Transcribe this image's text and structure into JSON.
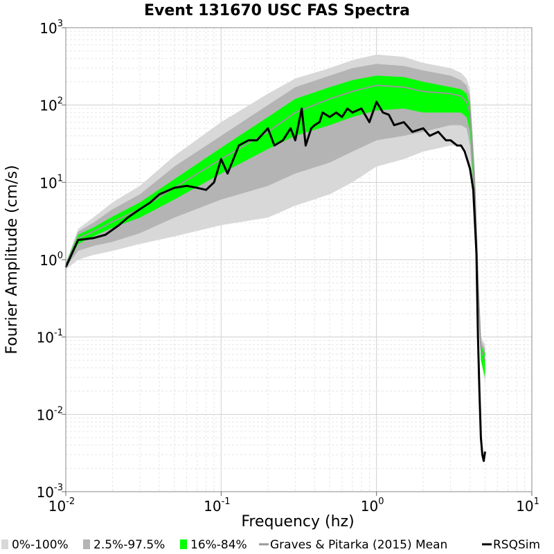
{
  "chart_data": {
    "type": "line",
    "title": "Event 131670 USC FAS Spectra",
    "xlabel": "Frequency (hz)",
    "ylabel": "Fourier Amplitude (cm/s)",
    "x_scale": "log",
    "y_scale": "log",
    "xlim": [
      0.01,
      10
    ],
    "ylim": [
      0.001,
      1000
    ],
    "x_ticks": [
      {
        "base": "10",
        "exp": "-2"
      },
      {
        "base": "10",
        "exp": "-1"
      },
      {
        "base": "10",
        "exp": "0"
      },
      {
        "base": "10",
        "exp": "1"
      }
    ],
    "y_ticks": [
      {
        "base": "10",
        "exp": "-3"
      },
      {
        "base": "10",
        "exp": "-2"
      },
      {
        "base": "10",
        "exp": "-1"
      },
      {
        "base": "10",
        "exp": "0"
      },
      {
        "base": "10",
        "exp": "1"
      },
      {
        "base": "10",
        "exp": "2"
      },
      {
        "base": "10",
        "exp": "3"
      }
    ],
    "grid": true,
    "legend_position": "bottom",
    "legend": [
      {
        "label": "0%-100%",
        "kind": "band",
        "color": "#d8d8d8"
      },
      {
        "label": "2.5%-97.5%",
        "kind": "band",
        "color": "#b4b4b4"
      },
      {
        "label": "16%-84%",
        "kind": "band",
        "color": "#00ff00"
      },
      {
        "label": "Graves & Pitarka (2015) Mean",
        "kind": "line",
        "color": "#999999"
      },
      {
        "label": "RSQSim",
        "kind": "line",
        "color": "#000000"
      }
    ],
    "x": [
      0.01,
      0.012,
      0.015,
      0.02,
      0.03,
      0.05,
      0.1,
      0.2,
      0.3,
      0.5,
      0.7,
      1.0,
      1.5,
      2.0,
      3.0,
      3.5,
      3.8,
      4.0,
      4.3,
      4.5,
      4.7,
      5.0
    ],
    "bands": [
      {
        "name": "0%-100%",
        "lower": [
          0.75,
          1.0,
          1.15,
          1.3,
          1.6,
          2.0,
          2.8,
          3.5,
          5.0,
          7.0,
          10,
          16,
          20,
          25,
          30,
          30,
          25,
          15,
          2.0,
          0.3,
          0.05,
          0.025
        ],
        "upper": [
          0.9,
          2.5,
          3.5,
          5.5,
          9,
          22,
          60,
          140,
          220,
          300,
          380,
          450,
          420,
          350,
          300,
          260,
          220,
          160,
          15,
          0.8,
          0.1,
          0.08
        ]
      },
      {
        "name": "2.5%-97.5%",
        "lower": [
          0.8,
          1.3,
          1.5,
          1.7,
          2.2,
          3.5,
          6,
          9,
          13,
          18,
          25,
          35,
          40,
          45,
          55,
          55,
          50,
          30,
          4.0,
          0.5,
          0.06,
          0.03
        ],
        "upper": [
          0.9,
          2.3,
          3.0,
          4.5,
          7,
          16,
          40,
          100,
          170,
          240,
          300,
          340,
          320,
          280,
          240,
          210,
          180,
          130,
          12,
          0.7,
          0.09,
          0.07
        ]
      },
      {
        "name": "16%-84%",
        "lower": [
          0.8,
          1.6,
          2.0,
          2.6,
          3.5,
          6,
          13,
          27,
          40,
          55,
          70,
          85,
          90,
          80,
          80,
          80,
          70,
          45,
          5.0,
          0.6,
          0.05,
          0.03
        ],
        "upper": [
          0.9,
          2.1,
          2.6,
          3.6,
          5.5,
          11,
          28,
          70,
          120,
          170,
          210,
          240,
          230,
          200,
          170,
          160,
          140,
          100,
          10,
          0.7,
          0.08,
          0.06
        ]
      }
    ],
    "series": [
      {
        "name": "Graves & Pitarka (2015) Mean",
        "values": [
          0.85,
          1.9,
          2.3,
          3.1,
          4.5,
          8.5,
          20,
          45,
          80,
          120,
          150,
          180,
          170,
          150,
          140,
          130,
          110,
          80,
          8,
          0.5,
          0.07,
          0.05
        ]
      },
      {
        "name": "RSQSim",
        "x": [
          0.01,
          0.012,
          0.015,
          0.018,
          0.022,
          0.025,
          0.03,
          0.035,
          0.04,
          0.05,
          0.06,
          0.07,
          0.08,
          0.09,
          0.1,
          0.11,
          0.12,
          0.13,
          0.15,
          0.17,
          0.2,
          0.22,
          0.25,
          0.28,
          0.3,
          0.33,
          0.35,
          0.38,
          0.4,
          0.43,
          0.45,
          0.5,
          0.55,
          0.6,
          0.65,
          0.7,
          0.8,
          0.9,
          1.0,
          1.1,
          1.2,
          1.3,
          1.5,
          1.7,
          2.0,
          2.2,
          2.5,
          2.8,
          3.0,
          3.3,
          3.5,
          3.7,
          4.0,
          4.2,
          4.4,
          4.5,
          4.6,
          4.7,
          4.8,
          4.9,
          5.0
        ],
        "values": [
          0.8,
          1.8,
          1.9,
          2.1,
          2.8,
          3.5,
          4.5,
          5.5,
          7,
          8.5,
          9,
          8.5,
          8,
          10,
          20,
          13,
          20,
          30,
          35,
          35,
          50,
          30,
          35,
          50,
          35,
          90,
          30,
          50,
          55,
          60,
          80,
          70,
          80,
          70,
          90,
          80,
          90,
          60,
          110,
          80,
          75,
          55,
          60,
          45,
          50,
          40,
          45,
          35,
          35,
          30,
          30,
          25,
          15,
          8,
          1.2,
          0.1,
          0.02,
          0.005,
          0.003,
          0.0025,
          0.0033
        ]
      }
    ]
  }
}
